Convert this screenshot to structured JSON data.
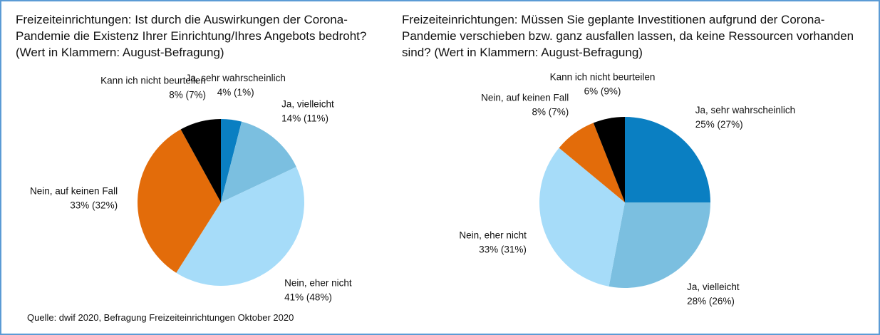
{
  "chart_data": [
    {
      "type": "pie",
      "title": "Freizeiteinrichtungen: Ist durch die Auswirkungen der Corona-Pandemie die Existenz Ihrer Einrichtung/Ihres Angebots bedroht? (Wert in Klammern: August-Befragung)",
      "categories": [
        "Ja, sehr wahrscheinlich",
        "Ja, vielleicht",
        "Nein, eher nicht",
        "Nein, auf keinen Fall",
        "Kann ich nicht beurteilen"
      ],
      "values": [
        4,
        14,
        41,
        33,
        8
      ],
      "value_labels": [
        "4% (1%)",
        "14% (11%)",
        "41% (48%)",
        "33% (32%)",
        "8% (7%)"
      ],
      "colors": [
        "#0a7fc2",
        "#7bbfe0",
        "#a6dcf9",
        "#e36c0a",
        "#000000"
      ]
    },
    {
      "type": "pie",
      "title": "Freizeiteinrichtungen: Müssen Sie geplante Investitionen aufgrund der Corona-Pandemie verschieben bzw. ganz ausfallen lassen, da keine Ressourcen vorhanden sind? (Wert in Klammern: August-Befragung)",
      "categories": [
        "Ja, sehr wahrscheinlich",
        "Ja, vielleicht",
        "Nein, eher nicht",
        "Nein, auf keinen Fall",
        "Kann ich nicht beurteilen"
      ],
      "values": [
        25,
        28,
        33,
        8,
        6
      ],
      "value_labels": [
        "25% (27%)",
        "28% (26%)",
        "33% (31%)",
        "8% (7%)",
        "6% (9%)"
      ],
      "colors": [
        "#0a7fc2",
        "#7bbfe0",
        "#a6dcf9",
        "#e36c0a",
        "#000000"
      ]
    }
  ],
  "source": "Quelle: dwif 2020, Befragung Freizeiteinrichtungen Oktober 2020"
}
